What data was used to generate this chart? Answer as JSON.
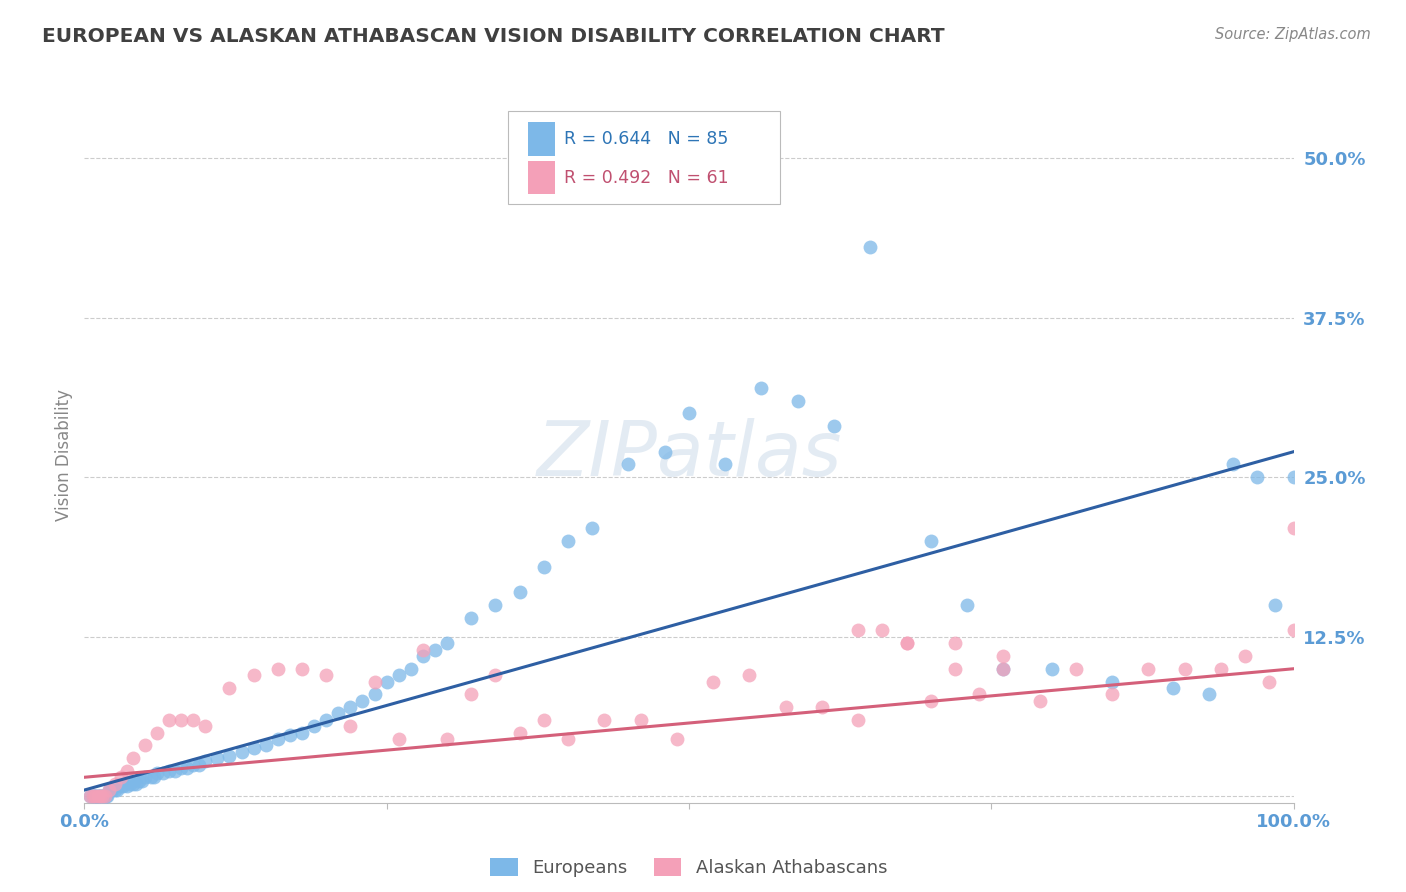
{
  "title": "EUROPEAN VS ALASKAN ATHABASCAN VISION DISABILITY CORRELATION CHART",
  "source": "Source: ZipAtlas.com",
  "ylabel": "Vision Disability",
  "yticks": [
    0.0,
    0.125,
    0.25,
    0.375,
    0.5
  ],
  "ytick_labels": [
    "",
    "12.5%",
    "25.0%",
    "37.5%",
    "50.0%"
  ],
  "xlim": [
    0.0,
    1.0
  ],
  "ylim": [
    -0.005,
    0.54
  ],
  "europeans_R": 0.644,
  "europeans_N": 85,
  "athabascan_R": 0.492,
  "athabascan_N": 61,
  "blue_color": "#7db8e8",
  "pink_color": "#f4a0b8",
  "blue_line_color": "#2e5fa3",
  "pink_line_color": "#d4607a",
  "title_color": "#404040",
  "axis_label_color": "#5b9bd5",
  "legend_blue_R_color": "#2e75b6",
  "legend_pink_R_color": "#c05070",
  "europeans_x": [
    0.005,
    0.007,
    0.008,
    0.009,
    0.01,
    0.011,
    0.012,
    0.013,
    0.014,
    0.015,
    0.016,
    0.017,
    0.018,
    0.019,
    0.02,
    0.021,
    0.022,
    0.023,
    0.025,
    0.027,
    0.03,
    0.032,
    0.035,
    0.038,
    0.04,
    0.043,
    0.045,
    0.048,
    0.05,
    0.055,
    0.058,
    0.06,
    0.065,
    0.07,
    0.075,
    0.08,
    0.085,
    0.09,
    0.095,
    0.1,
    0.11,
    0.12,
    0.13,
    0.14,
    0.15,
    0.16,
    0.17,
    0.18,
    0.19,
    0.2,
    0.21,
    0.22,
    0.23,
    0.24,
    0.25,
    0.26,
    0.27,
    0.28,
    0.29,
    0.3,
    0.32,
    0.34,
    0.36,
    0.38,
    0.4,
    0.42,
    0.45,
    0.48,
    0.5,
    0.53,
    0.56,
    0.59,
    0.62,
    0.65,
    0.7,
    0.73,
    0.76,
    0.8,
    0.85,
    0.9,
    0.93,
    0.95,
    0.97,
    0.985,
    1.0
  ],
  "europeans_y": [
    0.0,
    0.0,
    0.0,
    0.0,
    0.0,
    0.0,
    0.0,
    0.0,
    0.0,
    0.0,
    0.0,
    0.0,
    0.0,
    0.0,
    0.005,
    0.005,
    0.005,
    0.005,
    0.005,
    0.005,
    0.008,
    0.008,
    0.008,
    0.01,
    0.01,
    0.01,
    0.012,
    0.012,
    0.015,
    0.015,
    0.015,
    0.018,
    0.018,
    0.02,
    0.02,
    0.022,
    0.022,
    0.025,
    0.025,
    0.028,
    0.03,
    0.032,
    0.035,
    0.038,
    0.04,
    0.045,
    0.048,
    0.05,
    0.055,
    0.06,
    0.065,
    0.07,
    0.075,
    0.08,
    0.09,
    0.095,
    0.1,
    0.11,
    0.115,
    0.12,
    0.14,
    0.15,
    0.16,
    0.18,
    0.2,
    0.21,
    0.26,
    0.27,
    0.3,
    0.26,
    0.32,
    0.31,
    0.29,
    0.43,
    0.2,
    0.15,
    0.1,
    0.1,
    0.09,
    0.085,
    0.08,
    0.26,
    0.25,
    0.15,
    0.25
  ],
  "athabascan_x": [
    0.005,
    0.007,
    0.009,
    0.011,
    0.013,
    0.015,
    0.017,
    0.02,
    0.025,
    0.03,
    0.035,
    0.04,
    0.05,
    0.06,
    0.07,
    0.08,
    0.09,
    0.1,
    0.12,
    0.14,
    0.16,
    0.18,
    0.2,
    0.22,
    0.24,
    0.26,
    0.28,
    0.3,
    0.32,
    0.34,
    0.36,
    0.38,
    0.4,
    0.43,
    0.46,
    0.49,
    0.52,
    0.55,
    0.58,
    0.61,
    0.64,
    0.66,
    0.68,
    0.7,
    0.72,
    0.74,
    0.76,
    0.79,
    0.82,
    0.85,
    0.88,
    0.91,
    0.94,
    0.96,
    0.98,
    1.0,
    1.0,
    0.64,
    0.68,
    0.72,
    0.76
  ],
  "athabascan_y": [
    0.0,
    0.0,
    0.0,
    0.0,
    0.0,
    0.0,
    0.0,
    0.005,
    0.01,
    0.015,
    0.02,
    0.03,
    0.04,
    0.05,
    0.06,
    0.06,
    0.06,
    0.055,
    0.085,
    0.095,
    0.1,
    0.1,
    0.095,
    0.055,
    0.09,
    0.045,
    0.115,
    0.045,
    0.08,
    0.095,
    0.05,
    0.06,
    0.045,
    0.06,
    0.06,
    0.045,
    0.09,
    0.095,
    0.07,
    0.07,
    0.06,
    0.13,
    0.12,
    0.075,
    0.1,
    0.08,
    0.1,
    0.075,
    0.1,
    0.08,
    0.1,
    0.1,
    0.1,
    0.11,
    0.09,
    0.13,
    0.21,
    0.13,
    0.12,
    0.12,
    0.11
  ],
  "blue_trendline_x": [
    0.0,
    1.0
  ],
  "blue_trendline_y": [
    0.005,
    0.27
  ],
  "pink_trendline_x": [
    0.0,
    1.0
  ],
  "pink_trendline_y": [
    0.015,
    0.1
  ],
  "watermark": "ZIPatlas",
  "background_color": "#ffffff",
  "grid_color": "#cccccc"
}
